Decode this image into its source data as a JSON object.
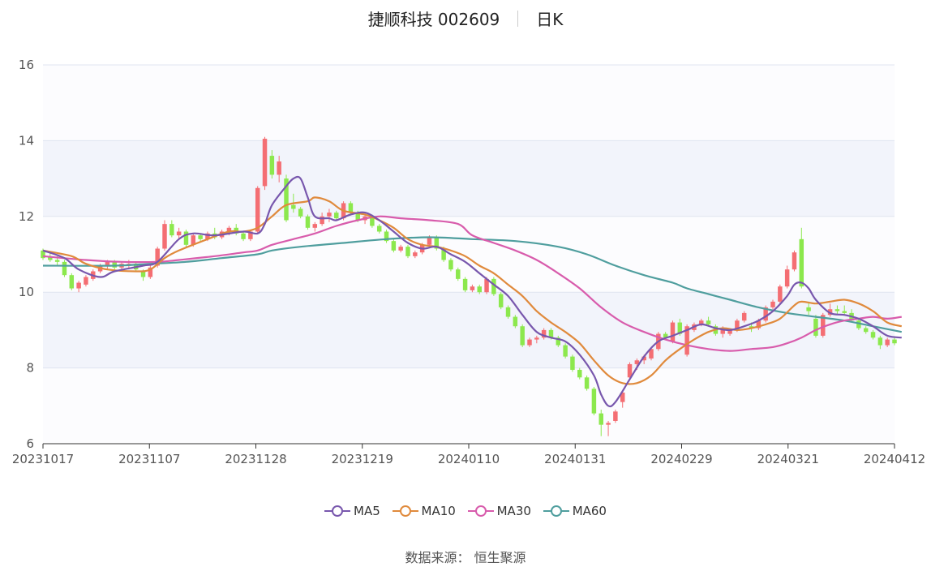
{
  "header": {
    "stock": "捷顺科技 002609",
    "period": "日K"
  },
  "source": "数据来源： 恒生聚源",
  "colors": {
    "up": "#f46e73",
    "down": "#8ce84d",
    "ma5": "#7857ad",
    "ma10": "#e08a3c",
    "ma30": "#d85cac",
    "ma60": "#4f9e9e"
  },
  "chart_data": {
    "type": "candlestick",
    "y_axis": {
      "min": 6,
      "max": 16,
      "ticks": [
        6,
        8,
        10,
        12,
        14,
        16
      ]
    },
    "x_axis": {
      "start": "20231017",
      "end": "20240412",
      "ticks": [
        "20231017",
        "20231107",
        "20231128",
        "20231219",
        "20240110",
        "20240131",
        "20240229",
        "20240321",
        "20240412"
      ]
    },
    "legend": [
      "MA5",
      "MA10",
      "MA30",
      "MA60"
    ],
    "grid": "horizontal bands",
    "candles_ohlc": [
      [
        11.1,
        11.15,
        10.85,
        10.9
      ],
      [
        10.95,
        11.05,
        10.8,
        10.85
      ],
      [
        10.85,
        10.95,
        10.7,
        10.8
      ],
      [
        10.8,
        10.85,
        10.4,
        10.45
      ],
      [
        10.45,
        10.5,
        10.05,
        10.1
      ],
      [
        10.1,
        10.3,
        10.0,
        10.25
      ],
      [
        10.2,
        10.45,
        10.15,
        10.4
      ],
      [
        10.35,
        10.6,
        10.3,
        10.55
      ],
      [
        10.55,
        10.75,
        10.5,
        10.7
      ],
      [
        10.7,
        10.85,
        10.6,
        10.8
      ],
      [
        10.8,
        10.85,
        10.6,
        10.65
      ],
      [
        10.65,
        10.8,
        10.55,
        10.75
      ],
      [
        10.7,
        10.85,
        10.6,
        10.75
      ],
      [
        10.75,
        10.8,
        10.55,
        10.6
      ],
      [
        10.55,
        10.6,
        10.3,
        10.4
      ],
      [
        10.4,
        10.7,
        10.35,
        10.65
      ],
      [
        10.7,
        11.2,
        10.65,
        11.15
      ],
      [
        11.15,
        11.9,
        11.1,
        11.8
      ],
      [
        11.8,
        11.9,
        11.45,
        11.5
      ],
      [
        11.5,
        11.7,
        11.4,
        11.6
      ],
      [
        11.6,
        11.65,
        11.2,
        11.25
      ],
      [
        11.25,
        11.55,
        11.2,
        11.5
      ],
      [
        11.5,
        11.55,
        11.35,
        11.4
      ],
      [
        11.4,
        11.6,
        11.35,
        11.55
      ],
      [
        11.55,
        11.7,
        11.4,
        11.45
      ],
      [
        11.45,
        11.65,
        11.4,
        11.6
      ],
      [
        11.6,
        11.75,
        11.5,
        11.7
      ],
      [
        11.7,
        11.8,
        11.5,
        11.55
      ],
      [
        11.55,
        11.6,
        11.35,
        11.4
      ],
      [
        11.4,
        11.65,
        11.35,
        11.6
      ],
      [
        11.6,
        12.8,
        11.55,
        12.75
      ],
      [
        12.8,
        14.1,
        12.7,
        14.05
      ],
      [
        13.6,
        13.75,
        13.0,
        13.1
      ],
      [
        13.1,
        13.6,
        12.9,
        13.45
      ],
      [
        13.0,
        13.1,
        11.85,
        11.9
      ],
      [
        12.3,
        12.6,
        12.1,
        12.2
      ],
      [
        12.2,
        12.25,
        11.95,
        12.0
      ],
      [
        12.0,
        12.05,
        11.65,
        11.7
      ],
      [
        11.7,
        11.85,
        11.6,
        11.8
      ],
      [
        11.8,
        12.1,
        11.75,
        12.0
      ],
      [
        12.0,
        12.2,
        11.85,
        12.1
      ],
      [
        12.1,
        12.15,
        11.9,
        11.95
      ],
      [
        11.95,
        12.4,
        11.9,
        12.35
      ],
      [
        12.35,
        12.4,
        12.05,
        12.1
      ],
      [
        12.1,
        12.15,
        11.85,
        11.9
      ],
      [
        11.9,
        12.1,
        11.8,
        12.0
      ],
      [
        12.0,
        12.05,
        11.7,
        11.75
      ],
      [
        11.75,
        11.8,
        11.55,
        11.6
      ],
      [
        11.6,
        11.65,
        11.3,
        11.35
      ],
      [
        11.35,
        11.4,
        11.05,
        11.1
      ],
      [
        11.1,
        11.25,
        11.05,
        11.2
      ],
      [
        11.2,
        11.25,
        10.9,
        10.95
      ],
      [
        10.95,
        11.1,
        10.9,
        11.05
      ],
      [
        11.05,
        11.3,
        11.0,
        11.25
      ],
      [
        11.25,
        11.5,
        11.2,
        11.45
      ],
      [
        11.45,
        11.5,
        11.1,
        11.15
      ],
      [
        11.15,
        11.2,
        10.8,
        10.85
      ],
      [
        10.85,
        10.9,
        10.55,
        10.6
      ],
      [
        10.6,
        10.65,
        10.3,
        10.35
      ],
      [
        10.35,
        10.4,
        10.0,
        10.05
      ],
      [
        10.05,
        10.2,
        10.0,
        10.15
      ],
      [
        10.15,
        10.2,
        9.95,
        10.0
      ],
      [
        10.0,
        10.4,
        9.95,
        10.35
      ],
      [
        10.35,
        10.4,
        9.9,
        9.95
      ],
      [
        9.95,
        10.0,
        9.55,
        9.6
      ],
      [
        9.6,
        9.65,
        9.3,
        9.35
      ],
      [
        9.35,
        9.4,
        9.05,
        9.1
      ],
      [
        9.1,
        9.15,
        8.55,
        8.6
      ],
      [
        8.6,
        8.8,
        8.55,
        8.75
      ],
      [
        8.75,
        8.85,
        8.65,
        8.8
      ],
      [
        8.8,
        9.05,
        8.75,
        9.0
      ],
      [
        9.0,
        9.05,
        8.75,
        8.8
      ],
      [
        8.8,
        8.85,
        8.55,
        8.6
      ],
      [
        8.6,
        8.65,
        8.25,
        8.3
      ],
      [
        8.3,
        8.35,
        7.9,
        7.95
      ],
      [
        7.95,
        8.0,
        7.7,
        7.75
      ],
      [
        7.75,
        7.8,
        7.4,
        7.45
      ],
      [
        7.45,
        7.5,
        6.75,
        6.8
      ],
      [
        6.8,
        6.9,
        6.2,
        6.5
      ],
      [
        6.5,
        6.6,
        6.2,
        6.55
      ],
      [
        6.6,
        6.9,
        6.55,
        6.85
      ],
      [
        7.1,
        7.4,
        6.95,
        7.35
      ],
      [
        7.75,
        8.15,
        7.7,
        8.1
      ],
      [
        8.1,
        8.25,
        7.95,
        8.2
      ],
      [
        8.2,
        8.35,
        8.1,
        8.3
      ],
      [
        8.25,
        8.55,
        8.2,
        8.5
      ],
      [
        8.5,
        8.95,
        8.45,
        8.9
      ],
      [
        8.9,
        8.95,
        8.75,
        8.8
      ],
      [
        8.7,
        9.25,
        8.65,
        9.2
      ],
      [
        9.2,
        9.3,
        8.85,
        8.9
      ],
      [
        8.35,
        9.15,
        8.3,
        9.1
      ],
      [
        9.0,
        9.2,
        8.95,
        9.15
      ],
      [
        9.15,
        9.3,
        9.1,
        9.25
      ],
      [
        9.25,
        9.35,
        9.1,
        9.15
      ],
      [
        9.1,
        9.15,
        8.85,
        8.9
      ],
      [
        8.9,
        9.1,
        8.8,
        9.05
      ],
      [
        8.9,
        9.05,
        8.85,
        9.0
      ],
      [
        9.0,
        9.3,
        8.95,
        9.25
      ],
      [
        9.25,
        9.5,
        9.2,
        9.45
      ],
      [
        9.1,
        9.2,
        8.95,
        9.05
      ],
      [
        9.05,
        9.3,
        9.0,
        9.25
      ],
      [
        9.25,
        9.65,
        9.2,
        9.6
      ],
      [
        9.6,
        9.8,
        9.55,
        9.75
      ],
      [
        9.75,
        10.2,
        9.7,
        10.15
      ],
      [
        10.15,
        10.7,
        10.1,
        10.6
      ],
      [
        10.6,
        11.1,
        10.55,
        11.05
      ],
      [
        11.4,
        11.7,
        10.1,
        10.15
      ],
      [
        9.6,
        9.75,
        9.4,
        9.5
      ],
      [
        9.3,
        9.4,
        8.8,
        8.85
      ],
      [
        8.85,
        9.45,
        8.8,
        9.4
      ],
      [
        9.4,
        9.7,
        9.35,
        9.55
      ],
      [
        9.55,
        9.65,
        9.4,
        9.5
      ],
      [
        9.5,
        9.65,
        9.4,
        9.45
      ],
      [
        9.45,
        9.55,
        9.2,
        9.25
      ],
      [
        9.25,
        9.3,
        9.0,
        9.05
      ],
      [
        9.05,
        9.1,
        8.9,
        8.95
      ],
      [
        8.95,
        9.0,
        8.75,
        8.8
      ],
      [
        8.8,
        8.85,
        8.5,
        8.6
      ],
      [
        8.6,
        8.8,
        8.55,
        8.75
      ],
      [
        8.75,
        8.8,
        8.6,
        8.65
      ]
    ],
    "ma": {
      "MA5": [
        [
          0,
          11.1
        ],
        [
          3,
          10.9
        ],
        [
          5,
          10.6
        ],
        [
          8,
          10.4
        ],
        [
          10,
          10.55
        ],
        [
          14,
          10.7
        ],
        [
          16,
          10.8
        ],
        [
          19,
          11.4
        ],
        [
          21,
          11.55
        ],
        [
          24,
          11.5
        ],
        [
          28,
          11.6
        ],
        [
          30,
          11.55
        ],
        [
          31,
          11.8
        ],
        [
          32,
          12.3
        ],
        [
          34,
          12.8
        ],
        [
          35,
          13.0
        ],
        [
          36,
          13.0
        ],
        [
          37,
          12.5
        ],
        [
          38,
          12.0
        ],
        [
          40,
          11.95
        ],
        [
          41,
          11.9
        ],
        [
          43,
          12.05
        ],
        [
          45,
          12.1
        ],
        [
          47,
          11.9
        ],
        [
          49,
          11.6
        ],
        [
          51,
          11.3
        ],
        [
          53,
          11.15
        ],
        [
          55,
          11.2
        ],
        [
          57,
          11.0
        ],
        [
          59,
          10.8
        ],
        [
          61,
          10.5
        ],
        [
          63,
          10.2
        ],
        [
          65,
          9.9
        ],
        [
          67,
          9.4
        ],
        [
          69,
          8.95
        ],
        [
          71,
          8.8
        ],
        [
          73,
          8.7
        ],
        [
          75,
          8.35
        ],
        [
          77,
          7.8
        ],
        [
          78,
          7.3
        ],
        [
          79,
          7.0
        ],
        [
          80,
          7.1
        ],
        [
          82,
          7.7
        ],
        [
          84,
          8.3
        ],
        [
          86,
          8.7
        ],
        [
          88,
          8.85
        ],
        [
          90,
          9.0
        ],
        [
          92,
          9.15
        ],
        [
          94,
          9.05
        ],
        [
          96,
          9.0
        ],
        [
          98,
          9.1
        ],
        [
          100,
          9.25
        ],
        [
          102,
          9.5
        ],
        [
          104,
          9.9
        ],
        [
          105,
          10.2
        ],
        [
          106,
          10.25
        ],
        [
          107,
          10.1
        ],
        [
          108,
          9.8
        ],
        [
          110,
          9.45
        ],
        [
          112,
          9.4
        ],
        [
          114,
          9.3
        ],
        [
          116,
          9.1
        ],
        [
          118,
          8.85
        ],
        [
          120,
          8.8
        ]
      ],
      "MA10": [
        [
          0,
          11.1
        ],
        [
          4,
          10.95
        ],
        [
          6,
          10.75
        ],
        [
          9,
          10.6
        ],
        [
          13,
          10.55
        ],
        [
          15,
          10.6
        ],
        [
          17,
          10.9
        ],
        [
          19,
          11.1
        ],
        [
          23,
          11.4
        ],
        [
          26,
          11.6
        ],
        [
          28,
          11.6
        ],
        [
          30,
          11.7
        ],
        [
          32,
          12.0
        ],
        [
          34,
          12.3
        ],
        [
          37,
          12.4
        ],
        [
          38,
          12.5
        ],
        [
          40,
          12.4
        ],
        [
          42,
          12.15
        ],
        [
          45,
          12.05
        ],
        [
          47,
          11.9
        ],
        [
          49,
          11.7
        ],
        [
          51,
          11.4
        ],
        [
          53,
          11.25
        ],
        [
          55,
          11.2
        ],
        [
          57,
          11.1
        ],
        [
          59,
          10.95
        ],
        [
          61,
          10.7
        ],
        [
          63,
          10.5
        ],
        [
          65,
          10.2
        ],
        [
          67,
          9.9
        ],
        [
          69,
          9.5
        ],
        [
          71,
          9.2
        ],
        [
          73,
          8.95
        ],
        [
          75,
          8.65
        ],
        [
          77,
          8.2
        ],
        [
          79,
          7.8
        ],
        [
          81,
          7.6
        ],
        [
          83,
          7.6
        ],
        [
          85,
          7.8
        ],
        [
          87,
          8.2
        ],
        [
          89,
          8.5
        ],
        [
          91,
          8.75
        ],
        [
          93,
          8.95
        ],
        [
          95,
          9.05
        ],
        [
          97,
          9.0
        ],
        [
          99,
          9.05
        ],
        [
          101,
          9.15
        ],
        [
          103,
          9.3
        ],
        [
          105,
          9.65
        ],
        [
          106,
          9.75
        ],
        [
          108,
          9.7
        ],
        [
          110,
          9.75
        ],
        [
          112,
          9.8
        ],
        [
          114,
          9.7
        ],
        [
          116,
          9.5
        ],
        [
          118,
          9.2
        ],
        [
          120,
          9.1
        ]
      ],
      "MA30": [
        [
          0,
          10.95
        ],
        [
          6,
          10.85
        ],
        [
          11,
          10.8
        ],
        [
          16,
          10.8
        ],
        [
          19,
          10.85
        ],
        [
          24,
          10.95
        ],
        [
          28,
          11.05
        ],
        [
          30,
          11.1
        ],
        [
          32,
          11.25
        ],
        [
          35,
          11.4
        ],
        [
          38,
          11.55
        ],
        [
          41,
          11.75
        ],
        [
          44,
          11.9
        ],
        [
          47,
          12.0
        ],
        [
          50,
          11.95
        ],
        [
          54,
          11.9
        ],
        [
          58,
          11.8
        ],
        [
          60,
          11.5
        ],
        [
          63,
          11.3
        ],
        [
          66,
          11.1
        ],
        [
          69,
          10.85
        ],
        [
          72,
          10.5
        ],
        [
          75,
          10.1
        ],
        [
          78,
          9.6
        ],
        [
          81,
          9.2
        ],
        [
          84,
          8.95
        ],
        [
          87,
          8.75
        ],
        [
          90,
          8.6
        ],
        [
          93,
          8.5
        ],
        [
          96,
          8.45
        ],
        [
          99,
          8.5
        ],
        [
          102,
          8.55
        ],
        [
          104,
          8.65
        ],
        [
          106,
          8.8
        ],
        [
          108,
          9.0
        ],
        [
          110,
          9.15
        ],
        [
          112,
          9.25
        ],
        [
          114,
          9.3
        ],
        [
          116,
          9.35
        ],
        [
          118,
          9.3
        ],
        [
          120,
          9.35
        ]
      ],
      "MA60": [
        [
          0,
          10.7
        ],
        [
          10,
          10.7
        ],
        [
          15,
          10.75
        ],
        [
          20,
          10.8
        ],
        [
          25,
          10.9
        ],
        [
          30,
          11.0
        ],
        [
          32,
          11.1
        ],
        [
          36,
          11.2
        ],
        [
          42,
          11.3
        ],
        [
          48,
          11.4
        ],
        [
          54,
          11.45
        ],
        [
          60,
          11.4
        ],
        [
          66,
          11.35
        ],
        [
          72,
          11.2
        ],
        [
          76,
          11.0
        ],
        [
          80,
          10.7
        ],
        [
          84,
          10.45
        ],
        [
          88,
          10.25
        ],
        [
          90,
          10.1
        ],
        [
          93,
          9.95
        ],
        [
          96,
          9.8
        ],
        [
          100,
          9.6
        ],
        [
          104,
          9.45
        ],
        [
          108,
          9.35
        ],
        [
          112,
          9.25
        ],
        [
          116,
          9.1
        ],
        [
          120,
          8.95
        ]
      ]
    }
  }
}
